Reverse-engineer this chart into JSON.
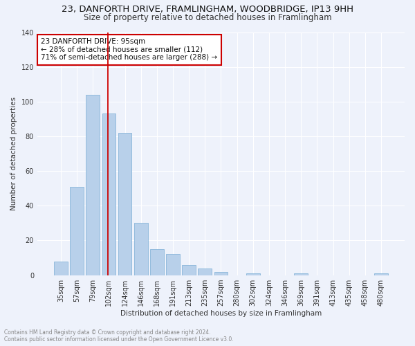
{
  "title": "23, DANFORTH DRIVE, FRAMLINGHAM, WOODBRIDGE, IP13 9HH",
  "subtitle": "Size of property relative to detached houses in Framlingham",
  "xlabel": "Distribution of detached houses by size in Framlingham",
  "ylabel": "Number of detached properties",
  "footnote1": "Contains HM Land Registry data © Crown copyright and database right 2024.",
  "footnote2": "Contains public sector information licensed under the Open Government Licence v3.0.",
  "bar_labels": [
    "35sqm",
    "57sqm",
    "79sqm",
    "102sqm",
    "124sqm",
    "146sqm",
    "168sqm",
    "191sqm",
    "213sqm",
    "235sqm",
    "257sqm",
    "280sqm",
    "302sqm",
    "324sqm",
    "346sqm",
    "369sqm",
    "391sqm",
    "413sqm",
    "435sqm",
    "458sqm",
    "480sqm"
  ],
  "bar_values": [
    8,
    51,
    104,
    93,
    82,
    30,
    15,
    12,
    6,
    4,
    2,
    0,
    1,
    0,
    0,
    1,
    0,
    0,
    0,
    0,
    1
  ],
  "bar_color": "#b8d0ea",
  "bar_edge_color": "#7aadd4",
  "background_color": "#eef2fb",
  "grid_color": "#ffffff",
  "vline_x": 2.93,
  "vline_color": "#cc0000",
  "annotation_text": "23 DANFORTH DRIVE: 95sqm\n← 28% of detached houses are smaller (112)\n71% of semi-detached houses are larger (288) →",
  "annotation_box_color": "#ffffff",
  "annotation_box_edge": "#cc0000",
  "ylim": [
    0,
    140
  ],
  "yticks": [
    0,
    20,
    40,
    60,
    80,
    100,
    120,
    140
  ],
  "title_fontsize": 9.5,
  "subtitle_fontsize": 8.5,
  "axis_fontsize": 7.5,
  "tick_fontsize": 7,
  "annot_fontsize": 7.5,
  "footnote_fontsize": 5.5
}
